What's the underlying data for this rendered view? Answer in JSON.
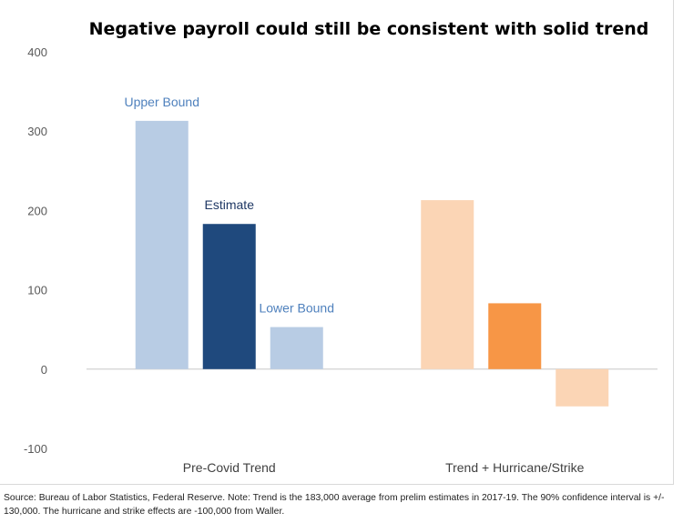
{
  "chart_data": {
    "type": "bar",
    "title": "Negative payroll could still be consistent with solid trend",
    "xlabel": "",
    "ylabel": "",
    "ylim": [
      -100,
      400
    ],
    "yticks": [
      -100,
      0,
      100,
      200,
      300,
      400
    ],
    "grid": false,
    "legend": "none",
    "groups": [
      {
        "category": "Pre-Covid Trend",
        "bars": [
          {
            "value": 313,
            "color": "#b8cce4",
            "label": "Upper Bound",
            "label_color": "#4f81bd"
          },
          {
            "value": 183,
            "color": "#1f497d",
            "label": "Estimate",
            "label_color": "#1f3864"
          },
          {
            "value": 53,
            "color": "#b8cce4",
            "label": "Lower Bound",
            "label_color": "#4f81bd"
          }
        ]
      },
      {
        "category": "Trend + Hurricane/Strike",
        "bars": [
          {
            "value": 213,
            "color": "#fbd5b5",
            "label": "",
            "label_color": ""
          },
          {
            "value": 83,
            "color": "#f79646",
            "label": "",
            "label_color": ""
          },
          {
            "value": -47,
            "color": "#fbd5b5",
            "label": "",
            "label_color": ""
          }
        ]
      }
    ]
  },
  "footnote": "Source: Bureau of Labor Statistics, Federal Reserve. Note: Trend is the 183,000 average from prelim estimates in 2017-19. The 90% confidence interval is +/- 130,000. The hurricane and strike effects are -100,000 from Waller."
}
